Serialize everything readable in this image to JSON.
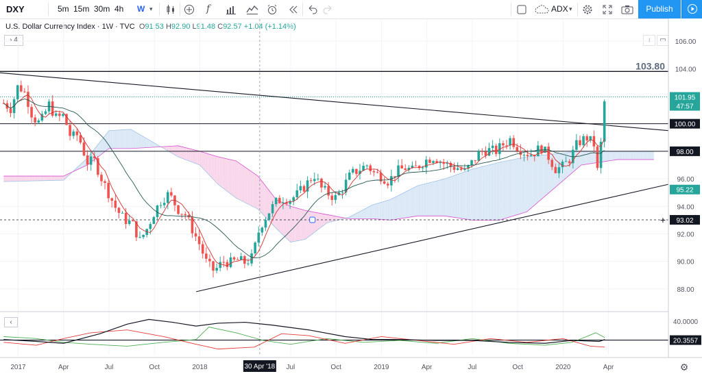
{
  "toolbar": {
    "symbol": "DXY",
    "intervals": [
      "5m",
      "15m",
      "30m",
      "4h",
      "W"
    ],
    "active_interval": "W",
    "compare_icon": "plus-circle-icon",
    "fx_label": "f",
    "indicator_dropdown": "ADX",
    "publish_label": "Publish"
  },
  "legend": {
    "title": "U.S. Dollar Currency Index · 1W · TVC",
    "open_key": "O",
    "open": "91.53",
    "high_key": "H",
    "high": "92.90",
    "low_key": "L",
    "low": "91.48",
    "close_key": "C",
    "close": "92.57",
    "change": "+1.04 (+1.14%)",
    "collapse_label": "4"
  },
  "chart_data": {
    "type": "candlestick",
    "symbol": "DXY",
    "interval": "1W",
    "y_ticks": [
      88,
      90,
      92,
      94,
      96,
      98,
      100,
      102,
      104,
      106
    ],
    "y_tick_labels": [
      "88.00",
      "90.00",
      "92.00",
      "94.00",
      "96.00",
      "98.00",
      "100.00",
      "102.00",
      "104.00",
      "106.00"
    ],
    "ylim": [
      86.5,
      107.0
    ],
    "x_labels": [
      {
        "label": "2017",
        "t": 2017.0
      },
      {
        "label": "Apr",
        "t": 2017.25
      },
      {
        "label": "Jul",
        "t": 2017.5
      },
      {
        "label": "Oct",
        "t": 2017.75
      },
      {
        "label": "2018",
        "t": 2018.0
      },
      {
        "label": "Jul",
        "t": 2018.5
      },
      {
        "label": "Oct",
        "t": 2018.75
      },
      {
        "label": "2019",
        "t": 2019.0
      },
      {
        "label": "Apr",
        "t": 2019.25
      },
      {
        "label": "Jul",
        "t": 2019.5
      },
      {
        "label": "Oct",
        "t": 2019.75
      },
      {
        "label": "2020",
        "t": 2020.0
      },
      {
        "label": "Apr",
        "t": 2020.25
      }
    ],
    "xlim": [
      2016.9,
      2020.58
    ],
    "crosshair": {
      "date_label": "30 Apr '18",
      "t": 2018.33,
      "price": 93.02,
      "price_label": "93.02"
    },
    "price_labels": [
      {
        "label": "101.95",
        "value": 101.95,
        "bg": "#26a69a"
      },
      {
        "label": "47:57",
        "value": 101.3,
        "bg": "#26a69a"
      },
      {
        "label": "100.00",
        "value": 100.0,
        "bg": "#131722"
      },
      {
        "label": "98.00",
        "value": 98.0,
        "bg": "#131722"
      },
      {
        "label": "95.22",
        "value": 95.22,
        "bg": "#26a69a"
      }
    ],
    "horizontal_lines": [
      {
        "value": 103.8,
        "label": "103.80",
        "width": 1.4
      },
      {
        "value": 100.0,
        "width": 1
      },
      {
        "value": 98.0,
        "width": 1
      }
    ],
    "trendlines": [
      {
        "t1": 2016.9,
        "v1": 103.7,
        "t2": 2020.58,
        "v2": 99.5
      },
      {
        "t1": 2017.98,
        "v1": 87.8,
        "t2": 2020.58,
        "v2": 95.6
      }
    ],
    "price_path": [
      [
        2016.92,
        101.5
      ],
      [
        2016.96,
        101.1
      ],
      [
        2017.0,
        102.8
      ],
      [
        2017.04,
        102.2
      ],
      [
        2017.08,
        100.5
      ],
      [
        2017.12,
        100.0
      ],
      [
        2017.17,
        101.4
      ],
      [
        2017.21,
        100.4
      ],
      [
        2017.25,
        100.6
      ],
      [
        2017.29,
        99.0
      ],
      [
        2017.33,
        99.2
      ],
      [
        2017.38,
        97.2
      ],
      [
        2017.42,
        97.3
      ],
      [
        2017.46,
        96.0
      ],
      [
        2017.5,
        94.9
      ],
      [
        2017.54,
        93.8
      ],
      [
        2017.58,
        93.1
      ],
      [
        2017.63,
        92.7
      ],
      [
        2017.67,
        91.5
      ],
      [
        2017.71,
        92.4
      ],
      [
        2017.75,
        93.6
      ],
      [
        2017.79,
        94.5
      ],
      [
        2017.83,
        94.9
      ],
      [
        2017.88,
        93.8
      ],
      [
        2017.92,
        93.4
      ],
      [
        2017.96,
        92.3
      ],
      [
        2018.0,
        91.2
      ],
      [
        2018.04,
        89.8
      ],
      [
        2018.08,
        89.3
      ],
      [
        2018.13,
        90.0
      ],
      [
        2018.17,
        89.9
      ],
      [
        2018.21,
        90.1
      ],
      [
        2018.25,
        89.9
      ],
      [
        2018.29,
        90.3
      ],
      [
        2018.33,
        92.5
      ],
      [
        2018.38,
        93.6
      ],
      [
        2018.42,
        94.3
      ],
      [
        2018.46,
        94.6
      ],
      [
        2018.5,
        94.5
      ],
      [
        2018.54,
        94.9
      ],
      [
        2018.58,
        95.5
      ],
      [
        2018.63,
        96.3
      ],
      [
        2018.67,
        95.3
      ],
      [
        2018.71,
        94.9
      ],
      [
        2018.75,
        94.6
      ],
      [
        2018.79,
        95.4
      ],
      [
        2018.83,
        96.3
      ],
      [
        2018.88,
        96.7
      ],
      [
        2018.92,
        97.0
      ],
      [
        2018.96,
        96.4
      ],
      [
        2019.0,
        96.2
      ],
      [
        2019.04,
        95.8
      ],
      [
        2019.08,
        96.5
      ],
      [
        2019.13,
        96.8
      ],
      [
        2019.17,
        96.6
      ],
      [
        2019.21,
        97.0
      ],
      [
        2019.25,
        97.4
      ],
      [
        2019.29,
        97.6
      ],
      [
        2019.33,
        97.2
      ],
      [
        2019.38,
        96.9
      ],
      [
        2019.42,
        96.8
      ],
      [
        2019.46,
        96.5
      ],
      [
        2019.5,
        97.2
      ],
      [
        2019.54,
        97.9
      ],
      [
        2019.58,
        98.1
      ],
      [
        2019.63,
        98.0
      ],
      [
        2019.67,
        98.5
      ],
      [
        2019.71,
        98.9
      ],
      [
        2019.75,
        98.3
      ],
      [
        2019.79,
        97.9
      ],
      [
        2019.83,
        97.8
      ],
      [
        2019.88,
        98.3
      ],
      [
        2019.92,
        97.6
      ],
      [
        2019.96,
        96.7
      ],
      [
        2020.0,
        96.9
      ],
      [
        2020.04,
        97.5
      ],
      [
        2020.08,
        98.6
      ],
      [
        2020.13,
        99.0
      ],
      [
        2020.17,
        98.5
      ],
      [
        2020.19,
        96.5
      ],
      [
        2020.21,
        98.7
      ],
      [
        2020.23,
        101.95
      ]
    ],
    "ichimoku_cloud": {
      "span_a": [
        [
          2016.92,
          95.8
        ],
        [
          2017.25,
          95.9
        ],
        [
          2017.38,
          97.5
        ],
        [
          2017.5,
          99.5
        ],
        [
          2017.62,
          99.6
        ],
        [
          2017.75,
          98.6
        ],
        [
          2017.88,
          97.6
        ],
        [
          2018.0,
          97.0
        ],
        [
          2018.1,
          95.6
        ],
        [
          2018.2,
          94.6
        ],
        [
          2018.32,
          93.8
        ],
        [
          2018.42,
          92.4
        ],
        [
          2018.5,
          91.4
        ],
        [
          2018.58,
          91.6
        ],
        [
          2018.7,
          92.8
        ],
        [
          2018.82,
          93.2
        ],
        [
          2018.95,
          94.1
        ],
        [
          2019.05,
          94.5
        ],
        [
          2019.2,
          95.5
        ],
        [
          2019.35,
          96.0
        ],
        [
          2019.5,
          96.7
        ],
        [
          2019.65,
          97.2
        ],
        [
          2019.8,
          97.6
        ],
        [
          2019.95,
          97.8
        ],
        [
          2020.1,
          98.0
        ],
        [
          2020.3,
          98.0
        ],
        [
          2020.5,
          98.0
        ]
      ],
      "span_b": [
        [
          2016.92,
          96.2
        ],
        [
          2017.25,
          96.2
        ],
        [
          2017.38,
          97.0
        ],
        [
          2017.5,
          98.2
        ],
        [
          2017.62,
          98.2
        ],
        [
          2017.75,
          98.3
        ],
        [
          2017.88,
          98.4
        ],
        [
          2018.0,
          98.0
        ],
        [
          2018.1,
          97.6
        ],
        [
          2018.2,
          97.3
        ],
        [
          2018.32,
          96.2
        ],
        [
          2018.42,
          94.5
        ],
        [
          2018.5,
          94.0
        ],
        [
          2018.58,
          93.7
        ],
        [
          2018.7,
          93.4
        ],
        [
          2018.82,
          93.1
        ],
        [
          2018.95,
          93.1
        ],
        [
          2019.05,
          93.0
        ],
        [
          2019.2,
          93.3
        ],
        [
          2019.35,
          93.3
        ],
        [
          2019.5,
          93.0
        ],
        [
          2019.65,
          93.0
        ],
        [
          2019.8,
          93.6
        ],
        [
          2019.95,
          95.3
        ],
        [
          2020.1,
          97.0
        ],
        [
          2020.3,
          97.4
        ],
        [
          2020.5,
          97.4
        ]
      ]
    },
    "indicator": {
      "name": "ADX",
      "level_label": "40.0000",
      "current_label": "20.3557",
      "ylim": [
        5,
        48
      ],
      "adx": [
        [
          2016.92,
          21
        ],
        [
          2017.1,
          19
        ],
        [
          2017.25,
          17
        ],
        [
          2017.45,
          27
        ],
        [
          2017.6,
          37
        ],
        [
          2017.72,
          42
        ],
        [
          2017.85,
          39
        ],
        [
          2017.98,
          35
        ],
        [
          2018.1,
          38
        ],
        [
          2018.25,
          39
        ],
        [
          2018.4,
          36
        ],
        [
          2018.6,
          31
        ],
        [
          2018.8,
          24
        ],
        [
          2018.95,
          21
        ],
        [
          2019.1,
          21
        ],
        [
          2019.3,
          20
        ],
        [
          2019.5,
          20
        ],
        [
          2019.7,
          18
        ],
        [
          2019.9,
          17
        ],
        [
          2020.05,
          20
        ],
        [
          2020.2,
          19
        ],
        [
          2020.23,
          21
        ]
      ],
      "plus_di": [
        [
          2016.92,
          24
        ],
        [
          2017.1,
          22
        ],
        [
          2017.25,
          18
        ],
        [
          2017.4,
          16
        ],
        [
          2017.6,
          14
        ],
        [
          2017.8,
          18
        ],
        [
          2017.98,
          21
        ],
        [
          2018.05,
          34
        ],
        [
          2018.2,
          28
        ],
        [
          2018.35,
          20
        ],
        [
          2018.5,
          16
        ],
        [
          2018.7,
          22
        ],
        [
          2018.9,
          18
        ],
        [
          2019.1,
          20
        ],
        [
          2019.3,
          17
        ],
        [
          2019.5,
          22
        ],
        [
          2019.7,
          17
        ],
        [
          2019.9,
          15
        ],
        [
          2020.05,
          18
        ],
        [
          2020.18,
          28
        ],
        [
          2020.23,
          23
        ]
      ],
      "minus_di": [
        [
          2016.92,
          18
        ],
        [
          2017.1,
          15
        ],
        [
          2017.25,
          22
        ],
        [
          2017.4,
          28
        ],
        [
          2017.6,
          31
        ],
        [
          2017.8,
          24
        ],
        [
          2017.98,
          16
        ],
        [
          2018.1,
          11
        ],
        [
          2018.3,
          13
        ],
        [
          2018.45,
          27
        ],
        [
          2018.6,
          25
        ],
        [
          2018.8,
          17
        ],
        [
          2019.0,
          24
        ],
        [
          2019.2,
          20
        ],
        [
          2019.4,
          16
        ],
        [
          2019.6,
          22
        ],
        [
          2019.8,
          18
        ],
        [
          2020.0,
          22
        ],
        [
          2020.15,
          14
        ],
        [
          2020.23,
          13
        ]
      ]
    }
  },
  "colors": {
    "up": "#26a69a",
    "down": "#ef5350",
    "cloud_bull": "#dbe8f5",
    "cloud_bear": "#f8d7ea",
    "span_b_line": "#d84fcf",
    "adx": "#131722",
    "plus_di": "#4caf50",
    "minus_di": "#e53935",
    "accent": "#2196f3"
  }
}
